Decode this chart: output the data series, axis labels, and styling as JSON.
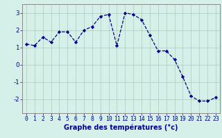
{
  "hours": [
    0,
    1,
    2,
    3,
    4,
    5,
    6,
    7,
    8,
    9,
    10,
    11,
    12,
    13,
    14,
    15,
    16,
    17,
    18,
    19,
    20,
    21,
    22,
    23
  ],
  "temperatures": [
    1.2,
    1.1,
    1.6,
    1.3,
    1.9,
    1.9,
    1.3,
    2.0,
    2.2,
    2.8,
    2.9,
    1.1,
    3.0,
    2.9,
    2.6,
    1.7,
    0.8,
    0.8,
    0.3,
    -0.7,
    -1.8,
    -2.1,
    -2.1,
    -1.9
  ],
  "line_color": "#00008B",
  "marker_color": "#00008B",
  "bg_color": "#D5F0E8",
  "grid_color": "#AACCBB",
  "xlabel": "Graphe des températures (°c)",
  "xlabel_color": "#00008B",
  "ylim": [
    -2.8,
    3.5
  ],
  "yticks": [
    -2,
    -1,
    0,
    1,
    2,
    3
  ],
  "xlim": [
    -0.5,
    23.5
  ],
  "tick_label_color": "#00008B",
  "xlabel_fontsize": 7.0,
  "tick_fontsize": 5.8,
  "border_color": "#888888"
}
